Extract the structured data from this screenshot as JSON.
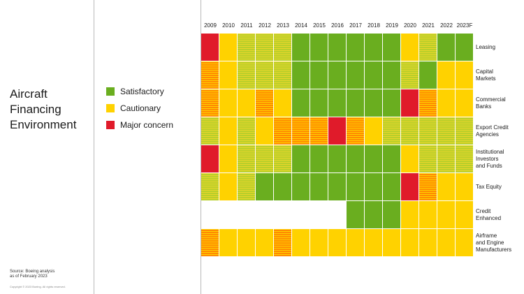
{
  "title": "Aircraft\nFinancing\nEnvironment",
  "legend": [
    {
      "label": "Satisfactory",
      "color": "#6aae1f"
    },
    {
      "label": "Cautionary",
      "color": "#ffd200"
    },
    {
      "label": "Major concern",
      "color": "#e01b2a"
    }
  ],
  "source": "Source: Boeing analysis\nas of February 2023",
  "copyright": "Copyright © 2023 Boeing. All rights reserved.",
  "chart_data": {
    "type": "heatmap",
    "x": [
      "2009",
      "2010",
      "2011",
      "2012",
      "2013",
      "2014",
      "2015",
      "2016",
      "2017",
      "2018",
      "2019",
      "2020",
      "2021",
      "2022",
      "2023F"
    ],
    "y": [
      "Leasing",
      "Capital\nMarkets",
      "Commercial\nBanks",
      "Export Credit\nAgencies",
      "Institutional\nInvestors\nand Funds",
      "Tax Equity",
      "Credit\nEnhanced",
      "Airframe\nand Engine\nManufacturers"
    ],
    "status_key": {
      "S": "Satisfactory",
      "C": "Cautionary",
      "M": "Major concern",
      "SC": "Satisfactory–Cautionary (striped)",
      "CM": "Cautionary–Major concern (striped)",
      "N": "no data"
    },
    "values": [
      [
        "M",
        "C",
        "SC",
        "SC",
        "SC",
        "S",
        "S",
        "S",
        "S",
        "S",
        "S",
        "C",
        "SC",
        "S",
        "S"
      ],
      [
        "CM",
        "C",
        "SC",
        "SC",
        "SC",
        "S",
        "S",
        "S",
        "S",
        "S",
        "S",
        "SC",
        "S",
        "C",
        "C"
      ],
      [
        "CM",
        "C",
        "C",
        "CM",
        "C",
        "S",
        "S",
        "S",
        "S",
        "S",
        "S",
        "M",
        "CM",
        "C",
        "C"
      ],
      [
        "SC",
        "C",
        "SC",
        "C",
        "CM",
        "CM",
        "CM",
        "M",
        "CM",
        "C",
        "SC",
        "SC",
        "SC",
        "SC",
        "SC"
      ],
      [
        "M",
        "C",
        "SC",
        "SC",
        "SC",
        "S",
        "S",
        "S",
        "S",
        "S",
        "S",
        "C",
        "SC",
        "SC",
        "SC"
      ],
      [
        "SC",
        "C",
        "SC",
        "S",
        "S",
        "S",
        "S",
        "S",
        "S",
        "S",
        "S",
        "M",
        "CM",
        "C",
        "C"
      ],
      [
        "N",
        "N",
        "N",
        "N",
        "N",
        "N",
        "N",
        "N",
        "S",
        "S",
        "S",
        "C",
        "C",
        "C",
        "C"
      ],
      [
        "CM",
        "C",
        "C",
        "C",
        "CM",
        "C",
        "C",
        "C",
        "C",
        "C",
        "C",
        "C",
        "C",
        "C",
        "C"
      ]
    ]
  }
}
